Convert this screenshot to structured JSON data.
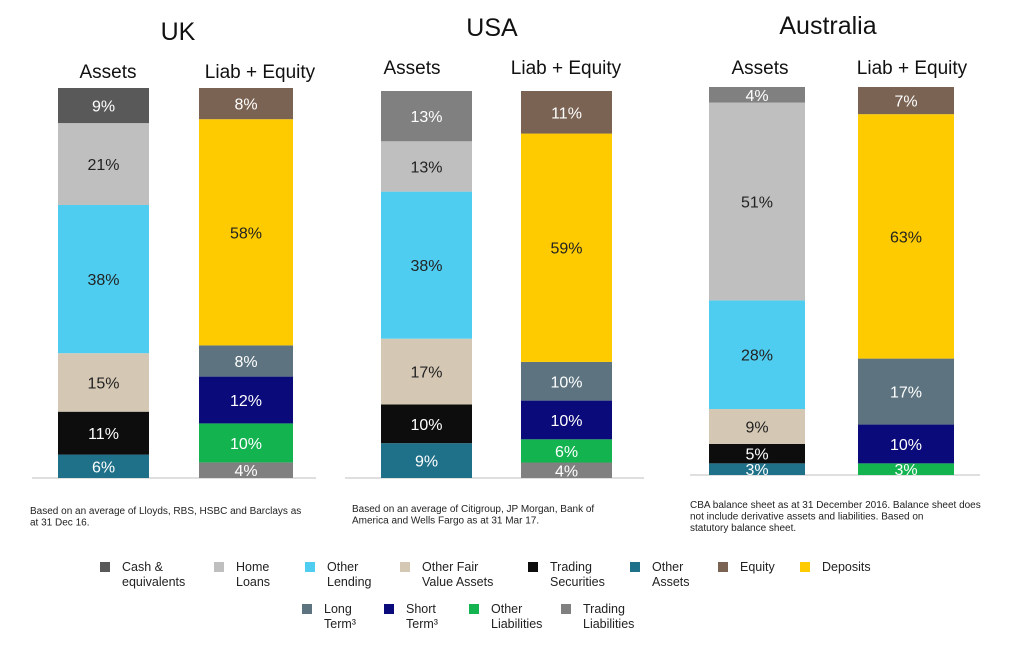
{
  "colors": {
    "cash": "#595959",
    "home_loans": "#bfbfbf",
    "other_lending": "#4fcdf0",
    "other_fv_assets": "#d4c7b4",
    "trading_securities": "#0d0d0d",
    "other_assets": "#1e7189",
    "equity": "#7a6353",
    "deposits": "#fecb00",
    "long_term": "#5d7480",
    "short_term": "#0a0a7a",
    "other_liabilities": "#13b350",
    "trading_liabilities": "#808080"
  },
  "chart_data": [
    {
      "type": "bar",
      "stacked": true,
      "title": "UK",
      "categories": [
        "Assets",
        "Liab + Equity"
      ],
      "note": "Based on an average of Lloyds, RBS, HSBC and Barclays as at 31 Dec 16.",
      "bars": [
        {
          "name": "Assets",
          "segments": [
            {
              "key": "other_assets",
              "value": 6,
              "label": "6%"
            },
            {
              "key": "trading_securities",
              "value": 11,
              "label": "11%"
            },
            {
              "key": "other_fv_assets",
              "value": 15,
              "label": "15%"
            },
            {
              "key": "other_lending",
              "value": 38,
              "label": "38%"
            },
            {
              "key": "home_loans",
              "value": 21,
              "label": "21%"
            },
            {
              "key": "cash",
              "value": 9,
              "label": "9%"
            }
          ]
        },
        {
          "name": "Liab + Equity",
          "segments": [
            {
              "key": "trading_liabilities",
              "value": 4,
              "label": "4%"
            },
            {
              "key": "other_liabilities",
              "value": 10,
              "label": "10%"
            },
            {
              "key": "short_term",
              "value": 12,
              "label": "12%"
            },
            {
              "key": "long_term",
              "value": 8,
              "label": "8%"
            },
            {
              "key": "deposits",
              "value": 58,
              "label": "58%"
            },
            {
              "key": "equity",
              "value": 8,
              "label": "8%"
            }
          ]
        }
      ]
    },
    {
      "type": "bar",
      "stacked": true,
      "title": "USA",
      "categories": [
        "Assets",
        "Liab + Equity"
      ],
      "note": "Based on an average of Citigroup, JP Morgan, Bank of America and Wells Fargo as at 31 Mar 17.",
      "bars": [
        {
          "name": "Assets",
          "segments": [
            {
              "key": "other_assets",
              "value": 9,
              "label": "9%"
            },
            {
              "key": "trading_securities",
              "value": 10,
              "label": "10%"
            },
            {
              "key": "other_fv_assets",
              "value": 17,
              "label": "17%"
            },
            {
              "key": "other_lending",
              "value": 38,
              "label": "38%"
            },
            {
              "key": "home_loans",
              "value": 13,
              "label": "13%"
            },
            {
              "key": "trading_liabilities",
              "value": 13,
              "label": "13%"
            }
          ]
        },
        {
          "name": "Liab + Equity",
          "segments": [
            {
              "key": "trading_liabilities",
              "value": 4,
              "label": "4%"
            },
            {
              "key": "other_liabilities",
              "value": 6,
              "label": "6%"
            },
            {
              "key": "short_term",
              "value": 10,
              "label": "10%"
            },
            {
              "key": "long_term",
              "value": 10,
              "label": "10%"
            },
            {
              "key": "deposits",
              "value": 59,
              "label": "59%"
            },
            {
              "key": "equity",
              "value": 11,
              "label": "11%"
            }
          ]
        }
      ]
    },
    {
      "type": "bar",
      "stacked": true,
      "title": "Australia",
      "categories": [
        "Assets",
        "Liab + Equity"
      ],
      "note": "CBA balance sheet as at 31 December 2016.  Balance sheet does not include derivative assets and liabilities. Based on statutory balance sheet.",
      "bars": [
        {
          "name": "Assets",
          "segments": [
            {
              "key": "other_assets",
              "value": 3,
              "label": "3%"
            },
            {
              "key": "trading_securities",
              "value": 5,
              "label": "5%"
            },
            {
              "key": "other_fv_assets",
              "value": 9,
              "label": "9%"
            },
            {
              "key": "other_lending",
              "value": 28,
              "label": "28%"
            },
            {
              "key": "home_loans",
              "value": 51,
              "label": "51%"
            },
            {
              "key": "trading_liabilities",
              "value": 4,
              "label": "4%"
            }
          ]
        },
        {
          "name": "Liab + Equity",
          "segments": [
            {
              "key": "other_liabilities",
              "value": 3,
              "label": "3%"
            },
            {
              "key": "short_term",
              "value": 10,
              "label": "10%"
            },
            {
              "key": "long_term",
              "value": 17,
              "label": "17%"
            },
            {
              "key": "deposits",
              "value": 63,
              "label": "63%"
            },
            {
              "key": "equity",
              "value": 7,
              "label": "7%"
            }
          ]
        }
      ]
    }
  ],
  "legend": [
    {
      "key": "cash",
      "lines": [
        "Cash &",
        "equivalents"
      ]
    },
    {
      "key": "home_loans",
      "lines": [
        "Home",
        "Loans"
      ]
    },
    {
      "key": "other_lending",
      "lines": [
        "Other",
        "Lending"
      ]
    },
    {
      "key": "other_fv_assets",
      "lines": [
        "Other Fair",
        "Value Assets"
      ]
    },
    {
      "key": "trading_securities",
      "lines": [
        "Trading",
        "Securities"
      ]
    },
    {
      "key": "other_assets",
      "lines": [
        "Other",
        "Assets"
      ]
    },
    {
      "key": "equity",
      "lines": [
        "Equity"
      ]
    },
    {
      "key": "deposits",
      "lines": [
        "Deposits"
      ]
    },
    {
      "key": "long_term",
      "lines": [
        "Long",
        "Term³"
      ]
    },
    {
      "key": "short_term",
      "lines": [
        "Short",
        "Term³"
      ]
    },
    {
      "key": "other_liabilities",
      "lines": [
        "Other",
        "Liabilities"
      ]
    },
    {
      "key": "trading_liabilities",
      "lines": [
        "Trading",
        "Liabilities"
      ]
    }
  ]
}
